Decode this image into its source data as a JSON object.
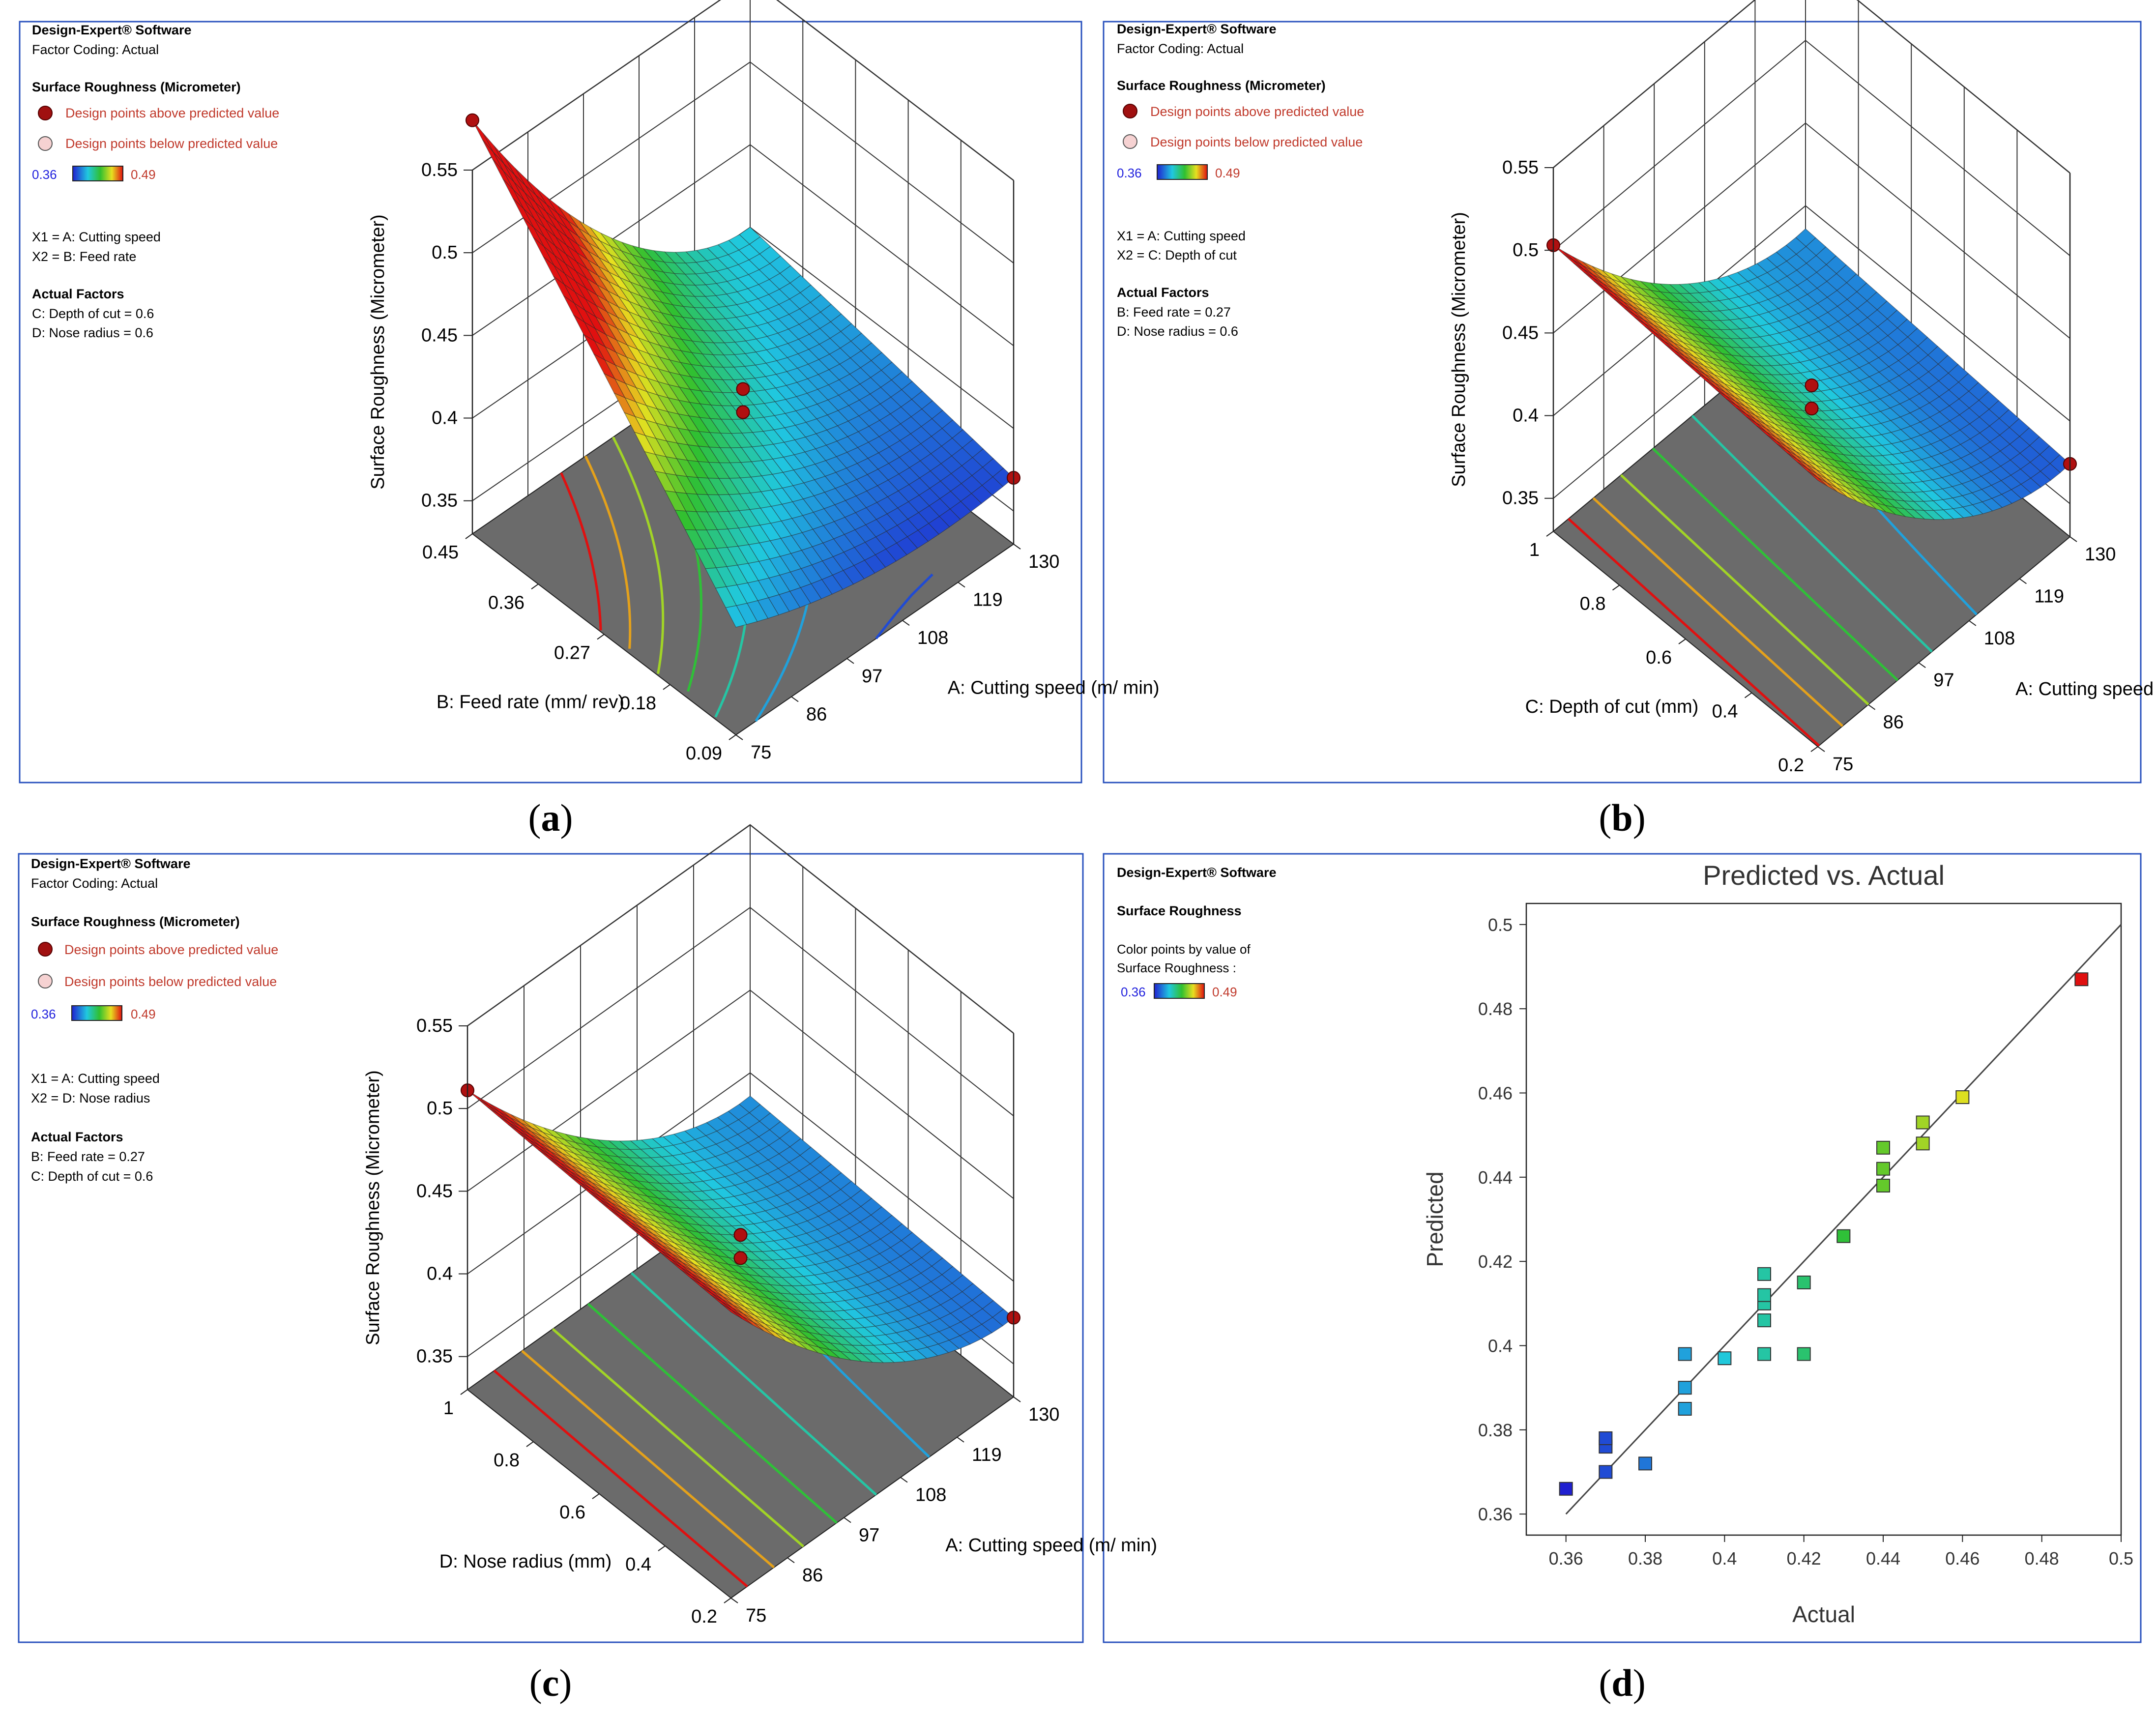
{
  "colors": {
    "panel_border": "#2a52be",
    "legend_red": "#c0392b",
    "low_blue": "#2222dd",
    "gray_floor": "#6b6b6b"
  },
  "legend_common": {
    "software": "Design-Expert® Software",
    "coding": "Factor Coding: Actual",
    "response": "Surface Roughness (Micrometer)",
    "above": "Design points above predicted value",
    "below": "Design points below predicted value",
    "scale_min": "0.36",
    "scale_max": "0.49"
  },
  "panels": [
    {
      "label_prefix": "(",
      "label_letter": "a",
      "label_suffix": ")",
      "x1": "X1 = A: Cutting speed",
      "x2": "X2 = B: Feed rate",
      "actual_factors_title": "Actual Factors",
      "actual_factors": [
        "C: Depth of cut = 0.6",
        "D: Nose radius = 0.6"
      ]
    },
    {
      "label_prefix": "(",
      "label_letter": "b",
      "label_suffix": ")",
      "x1": "X1 = A: Cutting speed",
      "x2": "X2 = C: Depth of cut",
      "actual_factors_title": "Actual Factors",
      "actual_factors": [
        "B: Feed rate = 0.27",
        "D: Nose radius = 0.6"
      ]
    },
    {
      "label_prefix": "(",
      "label_letter": "c",
      "label_suffix": ")",
      "x1": "X1 = A: Cutting speed",
      "x2": "X2 = D: Nose radius",
      "actual_factors_title": "Actual Factors",
      "actual_factors": [
        "B: Feed rate = 0.27",
        "C: Depth of cut = 0.6"
      ]
    },
    {
      "label_prefix": "(",
      "label_letter": "d",
      "label_suffix": ")",
      "software": "Design-Expert® Software",
      "response": "Surface Roughness",
      "color_by_1": "Color points by value of",
      "color_by_2": "Surface Roughness :"
    }
  ],
  "chart_data": [
    {
      "type": "surface",
      "zlabel": "Surface Roughness (Micrometer)",
      "z_ticks": [
        "0.35",
        "0.4",
        "0.45",
        "0.5",
        "0.55"
      ],
      "x_axis": {
        "label": "A: Cutting speed (m/ min)",
        "ticks": [
          "75",
          "86",
          "97",
          "108",
          "119",
          "130"
        ]
      },
      "y_axis": {
        "label": "B: Feed rate (mm/ rev)",
        "ticks": [
          "0.09",
          "0.18",
          "0.27",
          "0.36",
          "0.45"
        ]
      },
      "surface_range": [
        0.36,
        0.53
      ]
    },
    {
      "type": "surface",
      "zlabel": "Surface Roughness (Micrometer)",
      "z_ticks": [
        "0.35",
        "0.4",
        "0.45",
        "0.5",
        "0.55"
      ],
      "x_axis": {
        "label": "A: Cutting speed (m/ min)",
        "ticks": [
          "75",
          "86",
          "97",
          "108",
          "119",
          "130"
        ]
      },
      "y_axis": {
        "label": "C: Depth of cut (mm)",
        "ticks": [
          "0.2",
          "0.4",
          "0.6",
          "0.8",
          "1"
        ]
      },
      "surface_range": [
        0.36,
        0.49
      ]
    },
    {
      "type": "surface",
      "zlabel": "Surface Roughness (Micrometer)",
      "z_ticks": [
        "0.35",
        "0.4",
        "0.45",
        "0.5",
        "0.55"
      ],
      "x_axis": {
        "label": "A: Cutting speed (m/ min)",
        "ticks": [
          "75",
          "86",
          "97",
          "108",
          "119",
          "130"
        ]
      },
      "y_axis": {
        "label": "D: Nose radius (mm)",
        "ticks": [
          "0.2",
          "0.4",
          "0.6",
          "0.8",
          "1"
        ]
      },
      "surface_range": [
        0.37,
        0.49
      ]
    },
    {
      "type": "scatter",
      "title": "Predicted vs. Actual",
      "xlabel": "Actual",
      "ylabel": "Predicted",
      "xlim": [
        0.35,
        0.5
      ],
      "ylim": [
        0.355,
        0.505
      ],
      "x_ticks": [
        "0.36",
        "0.38",
        "0.4",
        "0.42",
        "0.44",
        "0.46",
        "0.48",
        "0.5"
      ],
      "y_ticks": [
        "0.36",
        "0.38",
        "0.4",
        "0.42",
        "0.44",
        "0.46",
        "0.48",
        "0.5"
      ],
      "reference_line": [
        [
          0.36,
          0.36
        ],
        [
          0.5,
          0.5
        ]
      ],
      "points": [
        {
          "x": 0.36,
          "y": 0.366
        },
        {
          "x": 0.37,
          "y": 0.37
        },
        {
          "x": 0.37,
          "y": 0.376
        },
        {
          "x": 0.37,
          "y": 0.378
        },
        {
          "x": 0.38,
          "y": 0.372
        },
        {
          "x": 0.39,
          "y": 0.385
        },
        {
          "x": 0.39,
          "y": 0.39
        },
        {
          "x": 0.39,
          "y": 0.398
        },
        {
          "x": 0.4,
          "y": 0.397
        },
        {
          "x": 0.41,
          "y": 0.398
        },
        {
          "x": 0.41,
          "y": 0.406
        },
        {
          "x": 0.41,
          "y": 0.41
        },
        {
          "x": 0.41,
          "y": 0.412
        },
        {
          "x": 0.41,
          "y": 0.417
        },
        {
          "x": 0.42,
          "y": 0.398
        },
        {
          "x": 0.42,
          "y": 0.415
        },
        {
          "x": 0.43,
          "y": 0.426
        },
        {
          "x": 0.44,
          "y": 0.438
        },
        {
          "x": 0.44,
          "y": 0.442
        },
        {
          "x": 0.44,
          "y": 0.447
        },
        {
          "x": 0.45,
          "y": 0.448
        },
        {
          "x": 0.45,
          "y": 0.453
        },
        {
          "x": 0.46,
          "y": 0.459
        },
        {
          "x": 0.49,
          "y": 0.487
        }
      ]
    }
  ]
}
